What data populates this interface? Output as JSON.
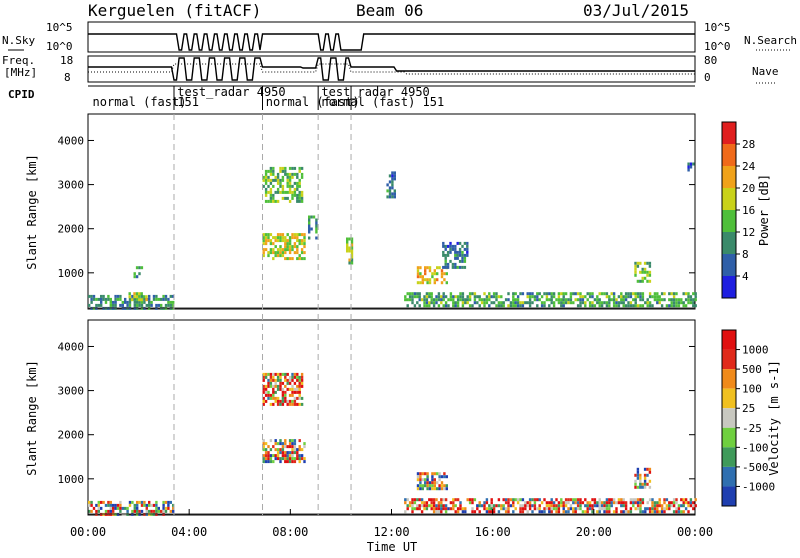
{
  "header": {
    "station": "Kerguelen (fitACF)",
    "beam": "Beam 06",
    "date": "03/Jul/2015"
  },
  "nsky_panel": {
    "label": "N.Sky",
    "ticks_left": [
      "10^5",
      "10^0"
    ],
    "ticks_right": [
      "10^5",
      "10^0"
    ],
    "right_label": "N.Search"
  },
  "freq_panel": {
    "label_line1": "Freq.",
    "label_line2": "[MHz]",
    "ticks_left": [
      "18",
      "8"
    ],
    "ticks_right": [
      "80",
      "0"
    ],
    "right_label": "Nave"
  },
  "cpid": {
    "label": "CPID",
    "segments": [
      {
        "start": 0.0,
        "end": 3.4,
        "name": "normal (fast)",
        "id": "151"
      },
      {
        "start": 3.4,
        "end": 6.9,
        "name": "test_radar",
        "id": "4950"
      },
      {
        "start": 6.9,
        "end": 9.1,
        "name": "normal (fast)",
        "id": "151"
      },
      {
        "start": 9.1,
        "end": 10.4,
        "name": "test_radar",
        "id": "4950"
      },
      {
        "start": 10.4,
        "end": 24.0,
        "name": "normal (fast)",
        "id": "151"
      }
    ],
    "labels": [
      {
        "t": 0.1,
        "row": 1,
        "text": "normal (fast)"
      },
      {
        "t": 3.45,
        "row": 0,
        "text": "test_radar 4950"
      },
      {
        "t": 3.45,
        "row": 1,
        "text": "151"
      },
      {
        "t": 6.95,
        "row": 1,
        "text": "normal (fast)"
      },
      {
        "t": 9.15,
        "row": 0,
        "text": "test_radar 4950"
      },
      {
        "t": 9.15,
        "row": 1,
        "text": "normal (fast) 151"
      }
    ]
  },
  "chart_data": [
    {
      "type": "heatmap",
      "name": "Power",
      "ylabel": "Slant Range [km]",
      "xlim": [
        0,
        24
      ],
      "ylim": [
        180,
        4600
      ],
      "yticks": [
        1000,
        2000,
        3000,
        4000
      ],
      "colorbar": {
        "label": "Power [dB]",
        "range": [
          0,
          32
        ],
        "ticks": [
          4,
          8,
          12,
          16,
          20,
          24,
          28
        ],
        "colors": [
          "#1f1fe0",
          "#2f5fa8",
          "#3a8a6a",
          "#4fbf3a",
          "#c9d21a",
          "#f0a21a",
          "#f06a1a",
          "#e01f1f"
        ]
      },
      "regions": [
        {
          "t0": 0.0,
          "t1": 3.4,
          "r0": 220,
          "r1": 500,
          "level": 10
        },
        {
          "t0": 1.6,
          "t1": 2.3,
          "r0": 380,
          "r1": 560,
          "level": 18
        },
        {
          "t0": 1.8,
          "t1": 2.1,
          "r0": 900,
          "r1": 1150,
          "level": 10
        },
        {
          "t0": 6.9,
          "t1": 8.5,
          "r0": 2600,
          "r1": 3400,
          "level": 14
        },
        {
          "t0": 6.9,
          "t1": 8.6,
          "r0": 1300,
          "r1": 1900,
          "level": 18
        },
        {
          "t0": 8.7,
          "t1": 9.0,
          "r0": 1800,
          "r1": 2300,
          "level": 10
        },
        {
          "t0": 10.2,
          "t1": 10.4,
          "r0": 1200,
          "r1": 1800,
          "level": 16
        },
        {
          "t0": 13.0,
          "t1": 14.2,
          "r0": 800,
          "r1": 1150,
          "level": 20
        },
        {
          "t0": 14.0,
          "t1": 15.0,
          "r0": 1150,
          "r1": 1700,
          "level": 8
        },
        {
          "t0": 12.5,
          "t1": 24.0,
          "r0": 220,
          "r1": 560,
          "level": 12
        },
        {
          "t0": 21.6,
          "t1": 22.2,
          "r0": 800,
          "r1": 1250,
          "level": 14
        },
        {
          "t0": 23.7,
          "t1": 23.9,
          "r0": 3300,
          "r1": 3500,
          "level": 8
        },
        {
          "t0": 11.8,
          "t1": 12.1,
          "r0": 2700,
          "r1": 3300,
          "level": 8
        }
      ]
    },
    {
      "type": "heatmap",
      "name": "Velocity",
      "ylabel": "Slant Range [km]",
      "xlabel": "Time UT",
      "xlim": [
        0,
        24
      ],
      "ylim": [
        180,
        4600
      ],
      "yticks": [
        1000,
        2000,
        3000,
        4000
      ],
      "xticks": [
        "00:00",
        "04:00",
        "08:00",
        "12:00",
        "16:00",
        "20:00",
        "00:00"
      ],
      "colorbar": {
        "label": "Velocity [m s-1]",
        "ticks": [
          "1000",
          "500",
          "100",
          "25",
          "-25",
          "-100",
          "-500",
          "-1000"
        ],
        "colors": [
          "#1f3fb0",
          "#2f6fb0",
          "#3f9a5a",
          "#6fcf3f",
          "#c8c8c0",
          "#f0c020",
          "#f08a1a",
          "#e02a1a",
          "#e01010"
        ]
      },
      "regions": [
        {
          "t0": 0.0,
          "t1": 3.4,
          "r0": 220,
          "r1": 500,
          "level": 4
        },
        {
          "t0": 6.9,
          "t1": 8.6,
          "r0": 1400,
          "r1": 1900,
          "level": 4
        },
        {
          "t0": 6.9,
          "t1": 8.5,
          "r0": 2700,
          "r1": 3400,
          "level": 6
        },
        {
          "t0": 13.0,
          "t1": 14.2,
          "r0": 800,
          "r1": 1150,
          "level": 3
        },
        {
          "t0": 12.5,
          "t1": 24.0,
          "r0": 220,
          "r1": 560,
          "level": 5
        },
        {
          "t0": 21.6,
          "t1": 22.2,
          "r0": 800,
          "r1": 1250,
          "level": 4
        }
      ]
    }
  ],
  "colors": {
    "dashed_marker": "#aaaaaa",
    "axis": "#000000"
  }
}
